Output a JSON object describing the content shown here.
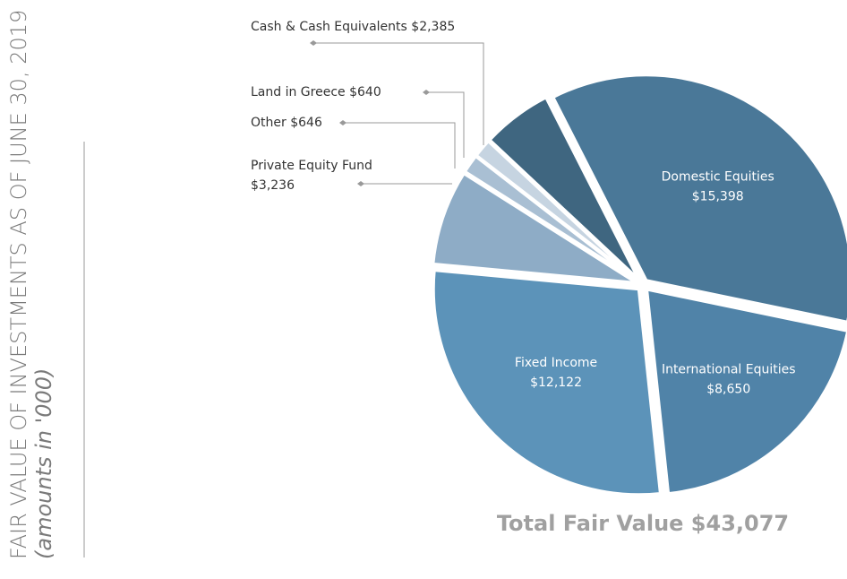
{
  "chart_data": {
    "type": "pie",
    "title": "FAIR VALUE OF INVESTMENTS AS OF JUNE 30, 2019",
    "subtitle": "(amounts in '000)",
    "total_label": "Total Fair Value $43,077",
    "categories": [
      "Domestic Equities",
      "International Equities",
      "Fixed Income",
      "Private Equity Fund",
      "Other",
      "Land in Greece",
      "Cash & Cash Equivalents"
    ],
    "values": [
      15398,
      8650,
      12122,
      3236,
      646,
      640,
      2385
    ],
    "value_labels": [
      "$15,398",
      "$8,650",
      "$12,122",
      "$3,236",
      "$646",
      "$640",
      "$2,385"
    ],
    "colors": [
      "#4a7898",
      "#5083a8",
      "#5c93b9",
      "#8eacc6",
      "#a9bfd3",
      "#c6d4e1",
      "#3f6680"
    ]
  }
}
